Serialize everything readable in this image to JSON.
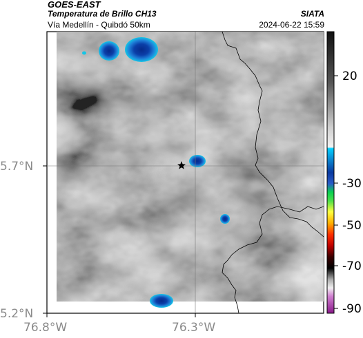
{
  "header": {
    "satellite": "GOES-EAST",
    "product": "Temperatura de Brillo CH13",
    "route": "Vía Medellín - Quibdó 50km",
    "organization": "SIATA",
    "datetime": "2024-06-22 15:59"
  },
  "axes": {
    "latitude_labels": [
      "5.7°N",
      "5.2°N"
    ],
    "longitude_labels": [
      "76.8°W",
      "76.3°W"
    ]
  },
  "colorbar": {
    "tick_labels": [
      "20",
      "-30",
      "-50",
      "-70",
      "-90"
    ]
  },
  "colors": {
    "cloud_blue": "#0b3fa8",
    "cloud_cyan": "#12b9dc",
    "border_line": "#000000"
  },
  "icons": [
    "star-marker-icon"
  ]
}
